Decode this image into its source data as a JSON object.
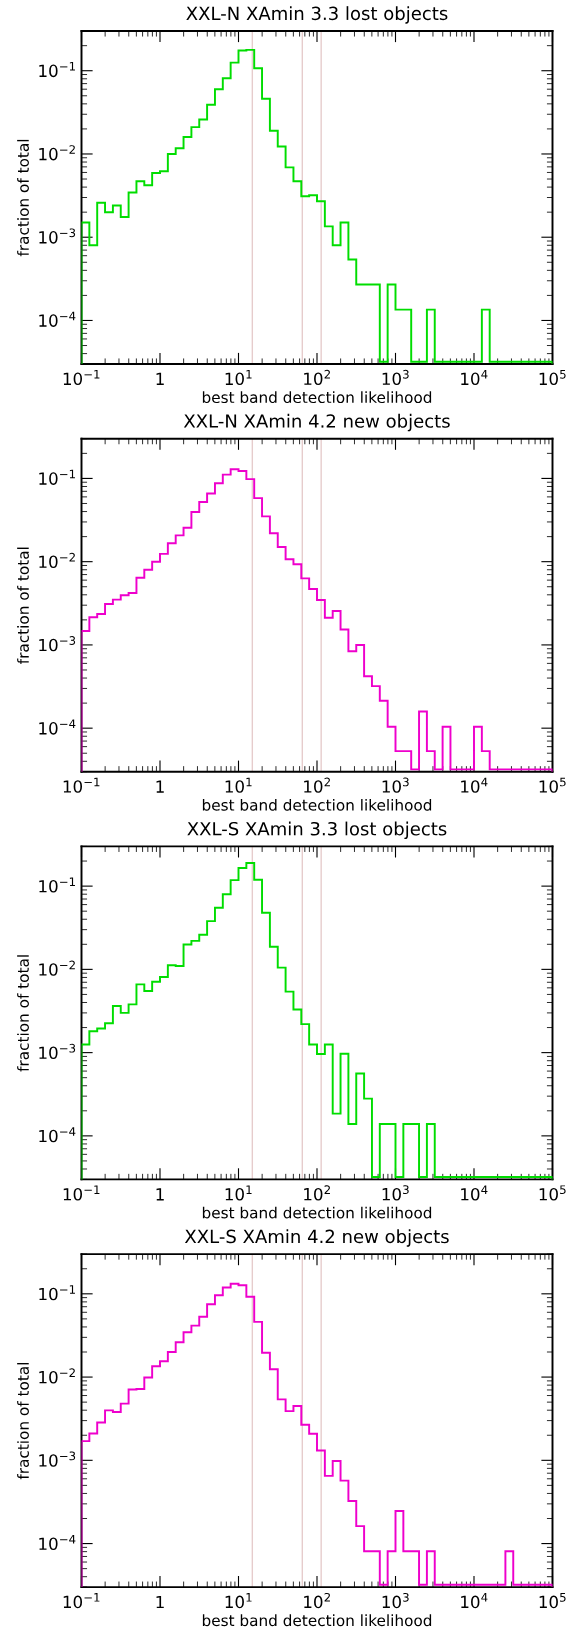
{
  "chart_data": [
    {
      "type": "histogram",
      "title": "XXL-N XAmin 3.3 lost objects",
      "xlabel": "best band detection likelihood",
      "ylabel": "fraction of total",
      "log": "xy",
      "color": "#00dd00",
      "bins": [
        0.1,
        0.1259,
        0.1585,
        0.1995,
        0.2512,
        0.3162,
        0.3981,
        0.5012,
        0.631,
        0.7943,
        1,
        1.259,
        1.585,
        1.995,
        2.512,
        3.162,
        3.981,
        5.012,
        6.31,
        7.943,
        10,
        12.59,
        15.85,
        19.95,
        25.12,
        31.62,
        39.81,
        50.12,
        63.1,
        79.43,
        100,
        125.9,
        158.5,
        199.5,
        251.2,
        316.2,
        398.1,
        501.2,
        631,
        794.3,
        1000,
        1259,
        1585,
        1995,
        2512,
        3162,
        3981,
        5012,
        6310,
        7943,
        10000,
        12590,
        15850,
        19950,
        25120,
        31620,
        39810,
        50120,
        63100,
        79430,
        100000
      ],
      "values": [
        0.0015,
        0.0008,
        0.0026,
        0.002,
        0.0024,
        0.00175,
        0.00345,
        0.0047,
        0.0042,
        0.0059,
        0.0062,
        0.01,
        0.0117,
        0.016,
        0.021,
        0.026,
        0.039,
        0.06,
        0.081,
        0.125,
        0.175,
        0.178,
        0.107,
        0.046,
        0.019,
        0.0123,
        0.0069,
        0.0047,
        0.0031,
        0.0032,
        0.0027,
        0.00135,
        0.0008,
        0.0015,
        0.00054,
        0.00027,
        0.00027,
        0.00027,
        3.2e-05,
        0.00027,
        0.000135,
        0.000135,
        3.2e-05,
        3.2e-05,
        0.000135,
        3.2e-05,
        3.2e-05,
        3.2e-05,
        3.2e-05,
        3.2e-05,
        3.2e-05,
        0.000135,
        3.2e-05,
        3.2e-05,
        3.2e-05,
        3.2e-05,
        3.2e-05,
        3.2e-05,
        3.2e-05,
        3.2e-05
      ],
      "xlim": [
        0.1,
        100000
      ],
      "ylim": [
        3e-05,
        0.3
      ],
      "xticks": [
        {
          "value": 0.1,
          "label": "10$^{−1}$"
        },
        1,
        {
          "value": 10,
          "label": "10$^{1}$"
        },
        {
          "value": 100,
          "label": "10$^{2}$"
        },
        {
          "value": 1000,
          "label": "10$^{3}$"
        },
        {
          "value": 10000,
          "label": "10$^{4}$"
        },
        {
          "value": 100000,
          "label": "10$^{5}$"
        }
      ],
      "yticks": [
        {
          "value": 0.1,
          "label": "10$^{−1}$"
        },
        {
          "value": 0.01,
          "label": "10$^{−2}$"
        },
        {
          "value": 0.001,
          "label": "10$^{−3}$"
        },
        {
          "value": 0.0001,
          "label": "10$^{−4}$"
        }
      ],
      "ref_lines": [
        {
          "axis": "x",
          "value": 15,
          "color": "#e6cccc"
        },
        {
          "axis": "x",
          "value": 65,
          "color": "#e6cccc"
        },
        {
          "axis": "x",
          "value": 113,
          "color": "#e6cccc"
        }
      ]
    },
    {
      "type": "histogram",
      "title": "XXL-N XAmin 4.2 new objects",
      "xlabel": "best band detection likelihood",
      "ylabel": "fraction of total",
      "log": "xy",
      "color": "#ee00cc",
      "bins": [
        0.1,
        0.1259,
        0.1585,
        0.1995,
        0.2512,
        0.3162,
        0.3981,
        0.5012,
        0.631,
        0.7943,
        1,
        1.259,
        1.585,
        1.995,
        2.512,
        3.162,
        3.981,
        5.012,
        6.31,
        7.943,
        10,
        12.59,
        15.85,
        19.95,
        25.12,
        31.62,
        39.81,
        50.12,
        63.1,
        79.43,
        100,
        125.9,
        158.5,
        199.5,
        251.2,
        316.2,
        398.1,
        501.2,
        631,
        794.3,
        1000,
        1259,
        1585,
        1995,
        2512,
        3162,
        3981,
        5012,
        6310,
        7943,
        10000,
        12590,
        15850,
        19950,
        25120,
        31620,
        39810,
        50120,
        63100,
        79430,
        100000
      ],
      "values": [
        0.00147,
        0.00215,
        0.00235,
        0.0031,
        0.0035,
        0.00395,
        0.0042,
        0.0064,
        0.008,
        0.01,
        0.0124,
        0.0166,
        0.0207,
        0.0256,
        0.0394,
        0.052,
        0.066,
        0.0875,
        0.111,
        0.129,
        0.123,
        0.098,
        0.058,
        0.035,
        0.022,
        0.015,
        0.0107,
        0.0093,
        0.0063,
        0.0047,
        0.00347,
        0.00212,
        0.00255,
        0.00153,
        0.00084,
        0.001,
        0.00042,
        0.00032,
        0.000213,
        0.000104,
        5.3e-05,
        5.3e-05,
        3.2e-05,
        0.000159,
        5.3e-05,
        3.2e-05,
        0.000104,
        3.2e-05,
        3.2e-05,
        3.2e-05,
        0.000104,
        5.3e-05,
        3.2e-05,
        3.2e-05,
        3.2e-05,
        3.2e-05,
        3.2e-05,
        3.2e-05,
        3.2e-05,
        3.2e-05
      ],
      "xlim": [
        0.1,
        100000
      ],
      "ylim": [
        3e-05,
        0.3
      ],
      "xticks": [
        {
          "value": 0.1,
          "label": "10$^{−1}$"
        },
        1,
        {
          "value": 10,
          "label": "10$^{1}$"
        },
        {
          "value": 100,
          "label": "10$^{2}$"
        },
        {
          "value": 1000,
          "label": "10$^{3}$"
        },
        {
          "value": 10000,
          "label": "10$^{4}$"
        },
        {
          "value": 100000,
          "label": "10$^{5}$"
        }
      ],
      "yticks": [
        {
          "value": 0.1,
          "label": "10$^{−1}$"
        },
        {
          "value": 0.01,
          "label": "10$^{−2}$"
        },
        {
          "value": 0.001,
          "label": "10$^{−3}$"
        },
        {
          "value": 0.0001,
          "label": "10$^{−4}$"
        }
      ],
      "ref_lines": [
        {
          "axis": "x",
          "value": 15,
          "color": "#e6cccc"
        },
        {
          "axis": "x",
          "value": 65,
          "color": "#e6cccc"
        },
        {
          "axis": "x",
          "value": 113,
          "color": "#e6cccc"
        }
      ]
    },
    {
      "type": "histogram",
      "title": "XXL-S XAmin 3.3 lost objects",
      "xlabel": "best band detection likelihood",
      "ylabel": "fraction of total",
      "log": "xy",
      "color": "#00dd00",
      "bins": [
        0.1,
        0.1259,
        0.1585,
        0.1995,
        0.2512,
        0.3162,
        0.3981,
        0.5012,
        0.631,
        0.7943,
        1,
        1.259,
        1.585,
        1.995,
        2.512,
        3.162,
        3.981,
        5.012,
        6.31,
        7.943,
        10,
        12.59,
        15.85,
        19.95,
        25.12,
        31.62,
        39.81,
        50.12,
        63.1,
        79.43,
        100,
        125.9,
        158.5,
        199.5,
        251.2,
        316.2,
        398.1,
        501.2,
        631,
        794.3,
        1000,
        1259,
        1585,
        1995,
        2512,
        3162,
        3981,
        5012,
        6310,
        7943,
        10000,
        12590,
        15850,
        19950,
        25120,
        31620,
        39810,
        50120,
        63100,
        79430,
        100000
      ],
      "values": [
        0.00125,
        0.00181,
        0.00195,
        0.00225,
        0.00363,
        0.003,
        0.0038,
        0.0066,
        0.0055,
        0.0071,
        0.0081,
        0.0112,
        0.011,
        0.0199,
        0.022,
        0.026,
        0.038,
        0.055,
        0.08,
        0.118,
        0.165,
        0.19,
        0.119,
        0.048,
        0.0187,
        0.0105,
        0.0054,
        0.0033,
        0.0022,
        0.00125,
        0.00096,
        0.00125,
        0.000185,
        0.00097,
        0.000139,
        0.00056,
        0.00028,
        3.2e-05,
        0.000139,
        0.000139,
        3.2e-05,
        0.000139,
        0.000139,
        3.2e-05,
        0.000139,
        3.2e-05,
        3.2e-05,
        3.2e-05,
        3.2e-05,
        3.2e-05,
        3.2e-05,
        3.2e-05,
        3.2e-05,
        3.2e-05,
        3.2e-05,
        3.2e-05,
        3.2e-05,
        3.2e-05,
        3.2e-05,
        3.2e-05
      ],
      "xlim": [
        0.1,
        100000
      ],
      "ylim": [
        3e-05,
        0.3
      ],
      "xticks": [
        {
          "value": 0.1,
          "label": "10$^{−1}$"
        },
        1,
        {
          "value": 10,
          "label": "10$^{1}$"
        },
        {
          "value": 100,
          "label": "10$^{2}$"
        },
        {
          "value": 1000,
          "label": "10$^{3}$"
        },
        {
          "value": 10000,
          "label": "10$^{4}$"
        },
        {
          "value": 100000,
          "label": "10$^{5}$"
        }
      ],
      "yticks": [
        {
          "value": 0.1,
          "label": "10$^{−1}$"
        },
        {
          "value": 0.01,
          "label": "10$^{−2}$"
        },
        {
          "value": 0.001,
          "label": "10$^{−3}$"
        },
        {
          "value": 0.0001,
          "label": "10$^{−4}$"
        }
      ],
      "ref_lines": [
        {
          "axis": "x",
          "value": 15,
          "color": "#e6cccc"
        },
        {
          "axis": "x",
          "value": 65,
          "color": "#e6cccc"
        },
        {
          "axis": "x",
          "value": 113,
          "color": "#e6cccc"
        }
      ]
    },
    {
      "type": "histogram",
      "title": "XXL-S XAmin 4.2 new objects",
      "xlabel": "best band detection likelihood",
      "ylabel": "fraction of total",
      "log": "xy",
      "color": "#ee00cc",
      "bins": [
        0.1,
        0.1259,
        0.1585,
        0.1995,
        0.2512,
        0.3162,
        0.3981,
        0.5012,
        0.631,
        0.7943,
        1,
        1.259,
        1.585,
        1.995,
        2.512,
        3.162,
        3.981,
        5.012,
        6.31,
        7.943,
        10,
        12.59,
        15.85,
        19.95,
        25.12,
        31.62,
        39.81,
        50.12,
        63.1,
        79.43,
        100,
        125.9,
        158.5,
        199.5,
        251.2,
        316.2,
        398.1,
        501.2,
        631,
        794.3,
        1000,
        1259,
        1585,
        1995,
        2512,
        3162,
        3981,
        5012,
        6310,
        7943,
        10000,
        12590,
        15850,
        19950,
        25120,
        31620,
        39810,
        50120,
        63100,
        79430,
        100000
      ],
      "values": [
        0.0017,
        0.0021,
        0.00284,
        0.00398,
        0.0038,
        0.0048,
        0.0071,
        0.0072,
        0.0099,
        0.0135,
        0.0155,
        0.02,
        0.0262,
        0.0345,
        0.0415,
        0.053,
        0.075,
        0.096,
        0.119,
        0.132,
        0.127,
        0.092,
        0.046,
        0.0196,
        0.0124,
        0.0054,
        0.0039,
        0.0045,
        0.00267,
        0.00209,
        0.00131,
        0.00065,
        0.00098,
        0.00057,
        0.000324,
        0.000162,
        8.1e-05,
        8.1e-05,
        3.2e-05,
        8.1e-05,
        0.000246,
        8.1e-05,
        8.1e-05,
        3.2e-05,
        8.1e-05,
        3.2e-05,
        3.2e-05,
        3.2e-05,
        3.2e-05,
        3.2e-05,
        3.2e-05,
        3.2e-05,
        3.2e-05,
        3.2e-05,
        8.1e-05,
        3.2e-05,
        3.2e-05,
        3.2e-05,
        3.2e-05,
        3.2e-05
      ],
      "xlim": [
        0.1,
        100000
      ],
      "ylim": [
        3e-05,
        0.3
      ],
      "xticks": [
        {
          "value": 0.1,
          "label": "10$^{−1}$"
        },
        1,
        {
          "value": 10,
          "label": "10$^{1}$"
        },
        {
          "value": 100,
          "label": "10$^{2}$"
        },
        {
          "value": 1000,
          "label": "10$^{3}$"
        },
        {
          "value": 10000,
          "label": "10$^{4}$"
        },
        {
          "value": 100000,
          "label": "10$^{5}$"
        }
      ],
      "yticks": [
        {
          "value": 0.1,
          "label": "10$^{−1}$"
        },
        {
          "value": 0.01,
          "label": "10$^{−2}$"
        },
        {
          "value": 0.001,
          "label": "10$^{−3}$"
        },
        {
          "value": 0.0001,
          "label": "10$^{−4}$"
        }
      ],
      "ref_lines": [
        {
          "axis": "x",
          "value": 15,
          "color": "#e6cccc"
        },
        {
          "axis": "x",
          "value": 65,
          "color": "#e6cccc"
        },
        {
          "axis": "x",
          "value": 113,
          "color": "#e6cccc"
        }
      ]
    }
  ]
}
